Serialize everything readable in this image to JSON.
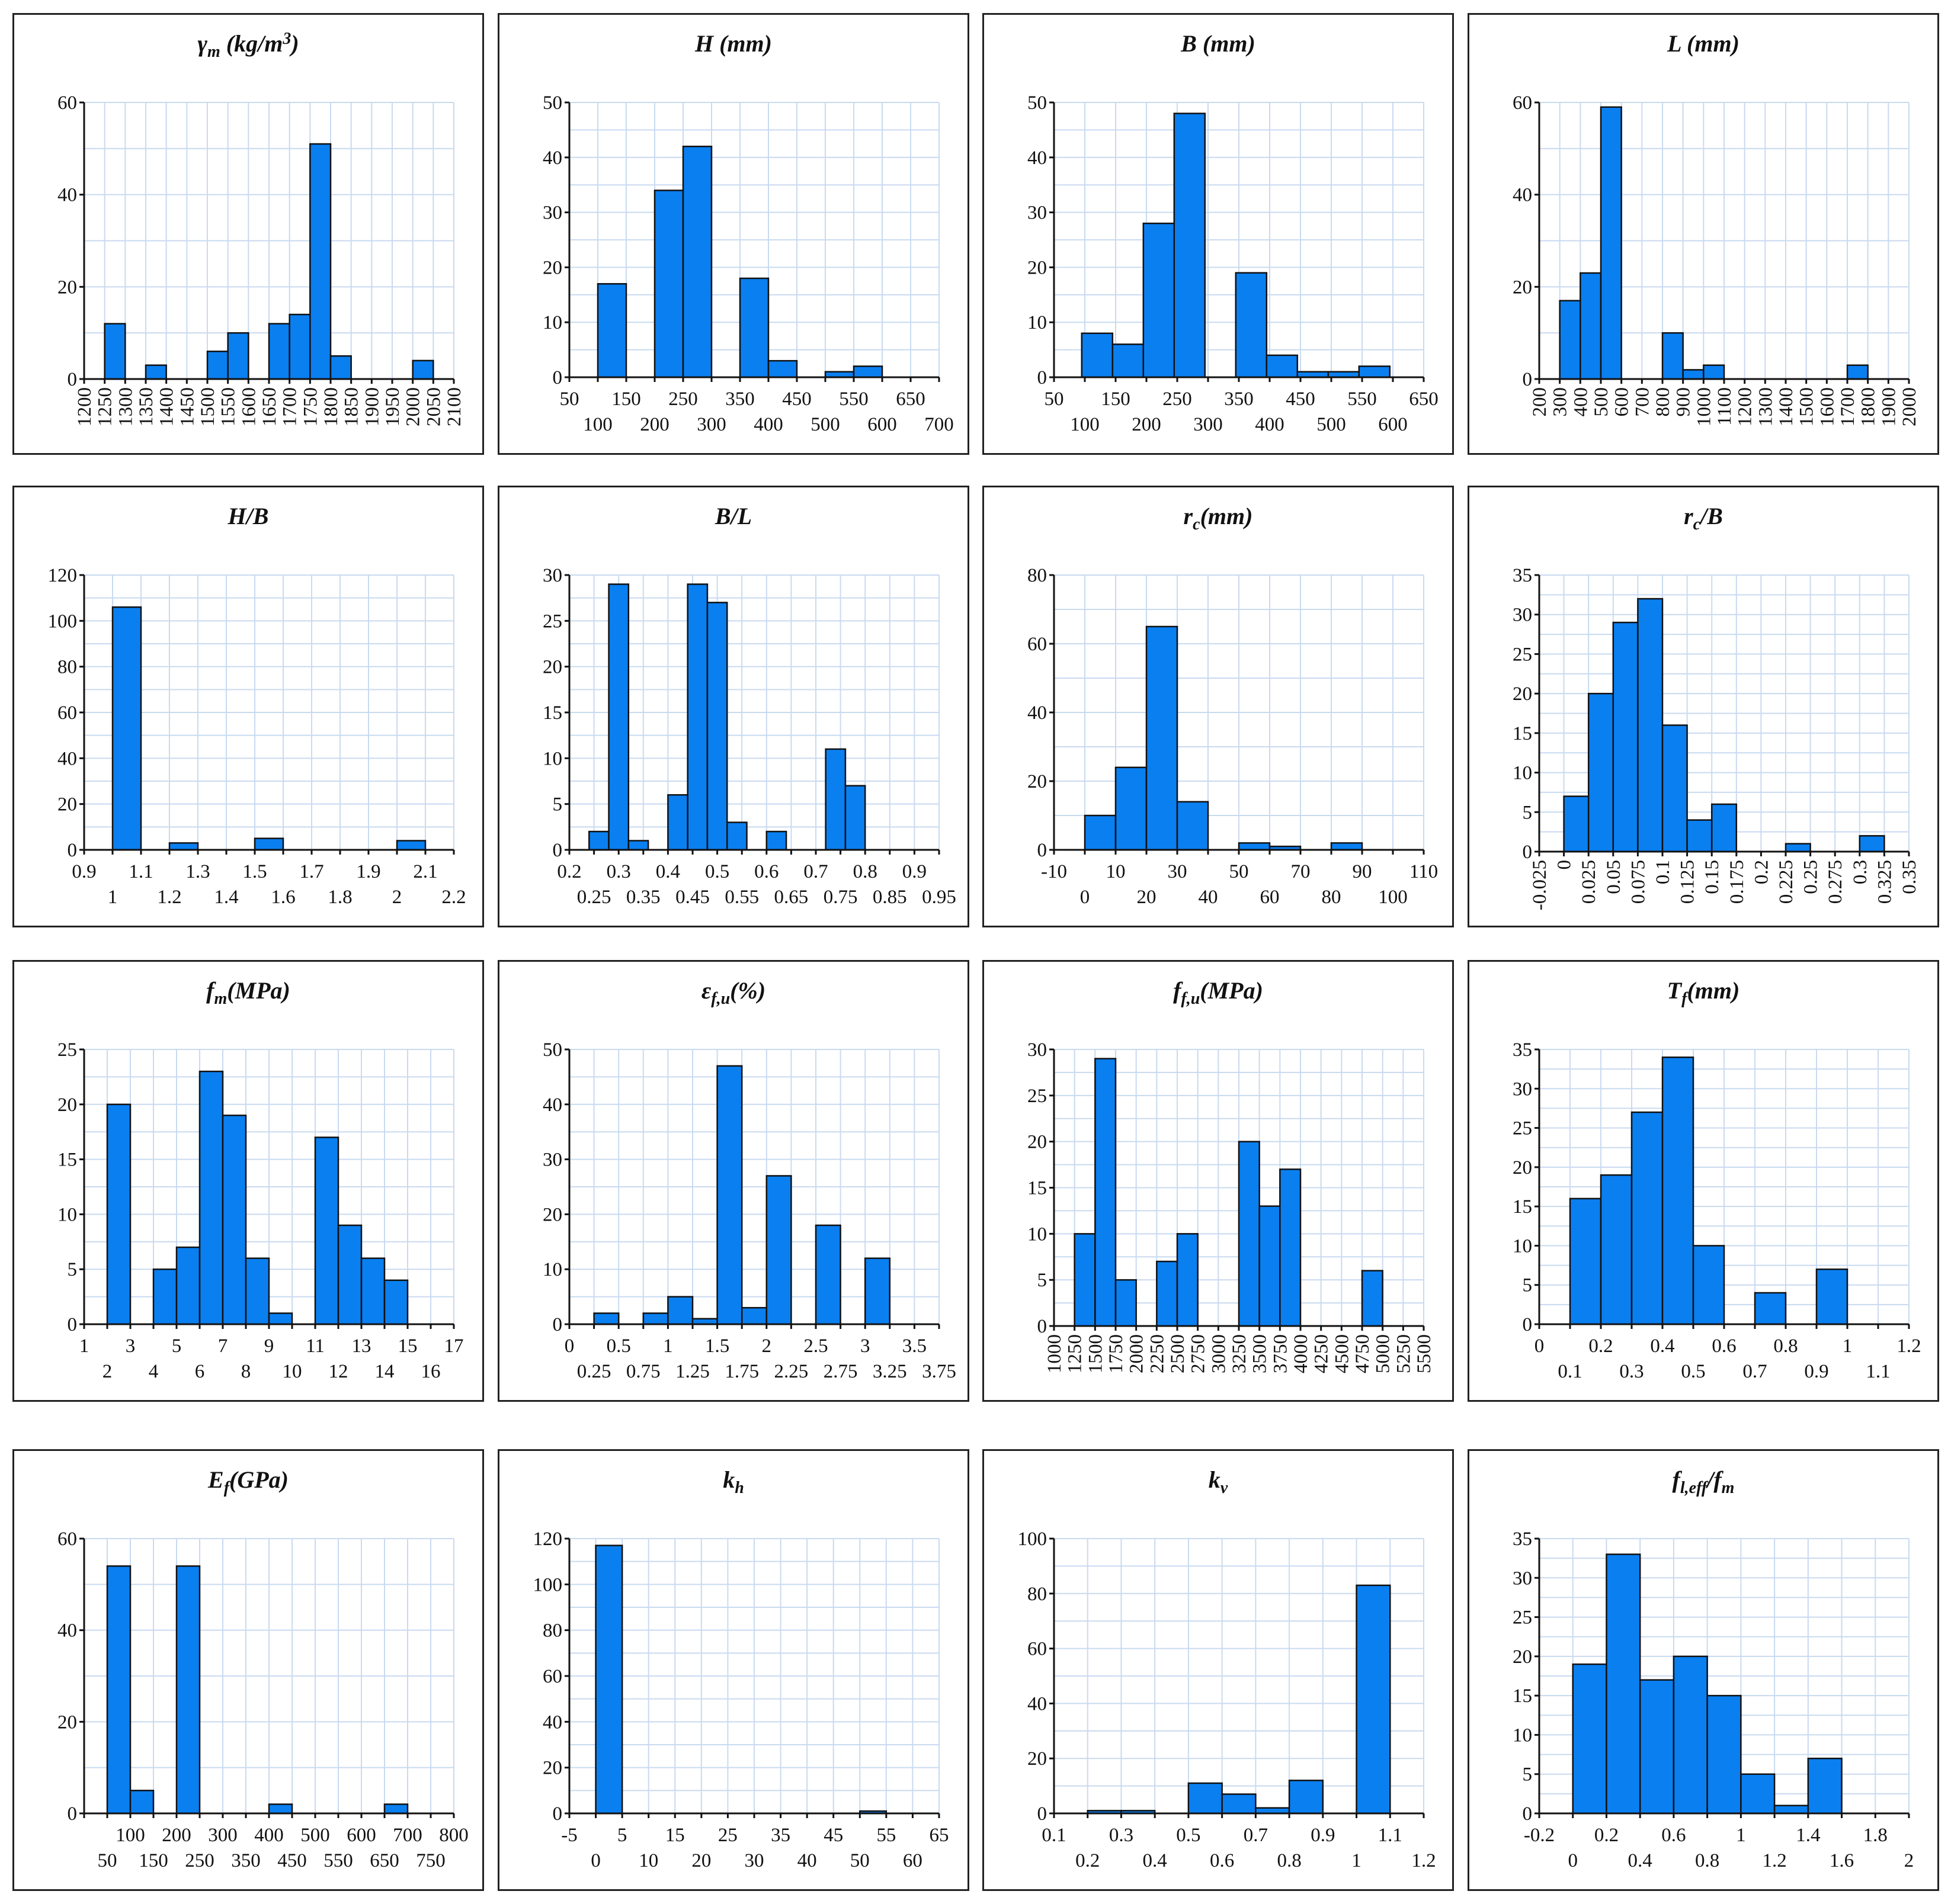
{
  "chart_data": [
    {
      "type": "bar",
      "title": "γm (kg/m3)",
      "xlim": [
        1200,
        2100
      ],
      "ylim": [
        0,
        60
      ],
      "xticks": [
        1200,
        1250,
        1300,
        1350,
        1400,
        1450,
        1500,
        1550,
        1600,
        1650,
        1700,
        1750,
        1800,
        1850,
        1900,
        1950,
        2000,
        2050,
        2100
      ],
      "xticks_rotated": true,
      "yticks": [
        0,
        20,
        40,
        60
      ],
      "bins": [
        [
          1250,
          1300,
          12
        ],
        [
          1350,
          1400,
          3
        ],
        [
          1500,
          1550,
          6
        ],
        [
          1550,
          1600,
          10
        ],
        [
          1650,
          1700,
          12
        ],
        [
          1700,
          1750,
          14
        ],
        [
          1750,
          1800,
          51
        ],
        [
          1800,
          1850,
          5
        ],
        [
          2000,
          2050,
          4
        ]
      ]
    },
    {
      "type": "bar",
      "title": "H (mm)",
      "xlim": [
        50,
        700
      ],
      "ylim": [
        0,
        50
      ],
      "xticks": [
        50,
        100,
        150,
        200,
        250,
        300,
        350,
        400,
        450,
        500,
        550,
        600,
        650,
        700
      ],
      "xticks_staggered": true,
      "yticks": [
        0,
        10,
        20,
        30,
        40,
        50
      ],
      "bins": [
        [
          100,
          150,
          17
        ],
        [
          200,
          250,
          34
        ],
        [
          250,
          300,
          42
        ],
        [
          350,
          400,
          18
        ],
        [
          400,
          450,
          3
        ],
        [
          500,
          550,
          1
        ],
        [
          550,
          600,
          2
        ]
      ]
    },
    {
      "type": "bar",
      "title": "B (mm)",
      "xlim": [
        50,
        650
      ],
      "ylim": [
        0,
        50
      ],
      "xticks": [
        50,
        100,
        150,
        200,
        250,
        300,
        350,
        400,
        450,
        500,
        550,
        600,
        650
      ],
      "xticks_staggered": true,
      "yticks": [
        0,
        10,
        20,
        30,
        40,
        50
      ],
      "bins": [
        [
          95,
          145,
          8
        ],
        [
          145,
          195,
          6
        ],
        [
          195,
          245,
          28
        ],
        [
          245,
          295,
          48
        ],
        [
          345,
          395,
          19
        ],
        [
          395,
          445,
          4
        ],
        [
          445,
          495,
          1
        ],
        [
          495,
          545,
          1
        ],
        [
          545,
          595,
          2
        ]
      ]
    },
    {
      "type": "bar",
      "title": "L (mm)",
      "xlim": [
        200,
        2000
      ],
      "ylim": [
        0,
        60
      ],
      "xticks": [
        200,
        300,
        400,
        500,
        600,
        700,
        800,
        900,
        1000,
        1100,
        1200,
        1300,
        1400,
        1500,
        1600,
        1700,
        1800,
        1900,
        2000
      ],
      "xticks_rotated": true,
      "yticks": [
        0,
        20,
        40,
        60
      ],
      "bins": [
        [
          300,
          400,
          17
        ],
        [
          400,
          500,
          23
        ],
        [
          500,
          600,
          59
        ],
        [
          800,
          900,
          10
        ],
        [
          900,
          1000,
          2
        ],
        [
          1000,
          1100,
          3
        ],
        [
          1700,
          1800,
          3
        ]
      ]
    },
    {
      "type": "bar",
      "title": "H/B",
      "xlim": [
        0.9,
        2.2
      ],
      "ylim": [
        0,
        120
      ],
      "xticks": [
        0.9,
        1,
        1.1,
        1.2,
        1.3,
        1.4,
        1.5,
        1.6,
        1.7,
        1.8,
        1.9,
        2,
        2.1,
        2.2
      ],
      "xticks_staggered": true,
      "yticks": [
        0,
        20,
        40,
        60,
        80,
        100,
        120
      ],
      "bins": [
        [
          1.0,
          1.1,
          106
        ],
        [
          1.2,
          1.3,
          3
        ],
        [
          1.5,
          1.6,
          5
        ],
        [
          2.0,
          2.1,
          4
        ]
      ]
    },
    {
      "type": "bar",
      "title": "B/L",
      "xlim": [
        0.2,
        0.95
      ],
      "ylim": [
        0,
        30
      ],
      "xticks": [
        0.2,
        0.25,
        0.3,
        0.35,
        0.4,
        0.45,
        0.5,
        0.55,
        0.6,
        0.65,
        0.7,
        0.75,
        0.8,
        0.85,
        0.9,
        0.95
      ],
      "xticks_staggered": true,
      "yticks": [
        0,
        5,
        10,
        15,
        20,
        25,
        30
      ],
      "bins": [
        [
          0.24,
          0.28,
          2
        ],
        [
          0.28,
          0.32,
          29
        ],
        [
          0.32,
          0.36,
          1
        ],
        [
          0.4,
          0.44,
          6
        ],
        [
          0.44,
          0.48,
          29
        ],
        [
          0.48,
          0.52,
          27
        ],
        [
          0.52,
          0.56,
          3
        ],
        [
          0.6,
          0.64,
          2
        ],
        [
          0.72,
          0.76,
          11
        ],
        [
          0.76,
          0.8,
          7
        ]
      ]
    },
    {
      "type": "bar",
      "title": "rc(mm)",
      "xlim": [
        -10,
        110
      ],
      "ylim": [
        0,
        80
      ],
      "xticks": [
        -10,
        0,
        10,
        20,
        30,
        40,
        50,
        60,
        70,
        80,
        90,
        100,
        110
      ],
      "xticks_staggered": true,
      "yticks": [
        0,
        20,
        40,
        60,
        80
      ],
      "bins": [
        [
          0,
          10,
          10
        ],
        [
          10,
          20,
          24
        ],
        [
          20,
          30,
          65
        ],
        [
          30,
          40,
          14
        ],
        [
          50,
          60,
          2
        ],
        [
          60,
          70,
          1
        ],
        [
          80,
          90,
          2
        ]
      ]
    },
    {
      "type": "bar",
      "title": "rc/B",
      "xlim": [
        -0.025,
        0.35
      ],
      "ylim": [
        0,
        35
      ],
      "xticks": [
        -0.025,
        0,
        0.025,
        0.05,
        0.075,
        0.1,
        0.125,
        0.15,
        0.175,
        0.2,
        0.225,
        0.25,
        0.275,
        0.3,
        0.325,
        0.35
      ],
      "xticks_rotated": true,
      "yticks": [
        0,
        5,
        10,
        15,
        20,
        25,
        30,
        35
      ],
      "bins": [
        [
          0,
          0.025,
          7
        ],
        [
          0.025,
          0.05,
          20
        ],
        [
          0.05,
          0.075,
          29
        ],
        [
          0.075,
          0.1,
          32
        ],
        [
          0.1,
          0.125,
          16
        ],
        [
          0.125,
          0.15,
          4
        ],
        [
          0.15,
          0.175,
          6
        ],
        [
          0.225,
          0.25,
          1
        ],
        [
          0.3,
          0.325,
          2
        ]
      ]
    },
    {
      "type": "bar",
      "title": "fm(MPa)",
      "xlim": [
        1,
        17
      ],
      "ylim": [
        0,
        25
      ],
      "xticks": [
        1,
        2,
        3,
        4,
        5,
        6,
        7,
        8,
        9,
        10,
        11,
        12,
        13,
        14,
        15,
        16,
        17
      ],
      "xticks_staggered": true,
      "yticks": [
        0,
        5,
        10,
        15,
        20,
        25
      ],
      "bins": [
        [
          2,
          3,
          20
        ],
        [
          4,
          5,
          5
        ],
        [
          5,
          6,
          7
        ],
        [
          6,
          7,
          23
        ],
        [
          7,
          8,
          19
        ],
        [
          8,
          9,
          6
        ],
        [
          9,
          10,
          1
        ],
        [
          11,
          12,
          17
        ],
        [
          12,
          13,
          9
        ],
        [
          13,
          14,
          6
        ],
        [
          14,
          15,
          4
        ]
      ]
    },
    {
      "type": "bar",
      "title": "εf,u(%)",
      "xlim": [
        0,
        3.75
      ],
      "ylim": [
        0,
        50
      ],
      "xticks": [
        0,
        0.25,
        0.5,
        0.75,
        1,
        1.25,
        1.5,
        1.75,
        2,
        2.25,
        2.5,
        2.75,
        3,
        3.25,
        3.5,
        3.75
      ],
      "xticks_staggered": true,
      "yticks": [
        0,
        10,
        20,
        30,
        40,
        50
      ],
      "bins": [
        [
          0.25,
          0.5,
          2
        ],
        [
          0.75,
          1.0,
          2
        ],
        [
          1.0,
          1.25,
          5
        ],
        [
          1.25,
          1.5,
          1
        ],
        [
          1.5,
          1.75,
          47
        ],
        [
          1.75,
          2.0,
          3
        ],
        [
          2.0,
          2.25,
          27
        ],
        [
          2.5,
          2.75,
          18
        ],
        [
          3.0,
          3.25,
          12
        ]
      ]
    },
    {
      "type": "bar",
      "title": "ff,u(MPa)",
      "xlim": [
        1000,
        5500
      ],
      "ylim": [
        0,
        30
      ],
      "xticks": [
        1000,
        1250,
        1500,
        1750,
        2000,
        2250,
        2500,
        2750,
        3000,
        3250,
        3500,
        3750,
        4000,
        4250,
        4500,
        4750,
        5000,
        5250,
        5500
      ],
      "xticks_rotated": true,
      "yticks": [
        0,
        5,
        10,
        15,
        20,
        25,
        30
      ],
      "bins": [
        [
          1250,
          1500,
          10
        ],
        [
          1500,
          1750,
          29
        ],
        [
          1750,
          2000,
          5
        ],
        [
          2250,
          2500,
          7
        ],
        [
          2500,
          2750,
          10
        ],
        [
          3250,
          3500,
          20
        ],
        [
          3500,
          3750,
          13
        ],
        [
          3750,
          4000,
          17
        ],
        [
          4750,
          5000,
          6
        ]
      ]
    },
    {
      "type": "bar",
      "title": "Tf(mm)",
      "xlim": [
        0,
        1.2
      ],
      "ylim": [
        0,
        35
      ],
      "xticks": [
        0,
        0.1,
        0.2,
        0.3,
        0.4,
        0.5,
        0.6,
        0.7,
        0.8,
        0.9,
        1,
        1.1,
        1.2
      ],
      "xticks_staggered": true,
      "yticks": [
        0,
        5,
        10,
        15,
        20,
        25,
        30,
        35
      ],
      "bins": [
        [
          0.1,
          0.2,
          16
        ],
        [
          0.2,
          0.3,
          19
        ],
        [
          0.3,
          0.4,
          27
        ],
        [
          0.4,
          0.5,
          34
        ],
        [
          0.5,
          0.6,
          10
        ],
        [
          0.7,
          0.8,
          4
        ],
        [
          0.9,
          1.0,
          7
        ]
      ]
    },
    {
      "type": "bar",
      "title": "Ef(GPa)",
      "xlim": [
        0,
        800
      ],
      "ylim": [
        0,
        60
      ],
      "xticks": [
        0,
        50,
        100,
        150,
        200,
        250,
        300,
        350,
        400,
        450,
        500,
        550,
        600,
        650,
        700,
        750,
        800
      ],
      "xticks_staggered": true,
      "hidden_ticks": [
        0
      ],
      "yticks": [
        0,
        20,
        40,
        60
      ],
      "bins": [
        [
          50,
          100,
          54
        ],
        [
          100,
          150,
          5
        ],
        [
          200,
          250,
          54
        ],
        [
          400,
          450,
          2
        ],
        [
          650,
          700,
          2
        ]
      ]
    },
    {
      "type": "bar",
      "title": "kh",
      "xlim": [
        -5,
        65
      ],
      "ylim": [
        0,
        120
      ],
      "xticks": [
        -5,
        0,
        5,
        10,
        15,
        20,
        25,
        30,
        35,
        40,
        45,
        50,
        55,
        60,
        65
      ],
      "xticks_staggered": true,
      "yticks": [
        0,
        20,
        40,
        60,
        80,
        100,
        120
      ],
      "bins": [
        [
          0,
          5,
          117
        ],
        [
          50,
          55,
          1
        ]
      ]
    },
    {
      "type": "bar",
      "title": "kv",
      "xlim": [
        0.1,
        1.2
      ],
      "ylim": [
        0,
        100
      ],
      "xticks": [
        0.1,
        0.2,
        0.3,
        0.4,
        0.5,
        0.6,
        0.7,
        0.8,
        0.9,
        1,
        1.1,
        1.2
      ],
      "xticks_staggered": true,
      "yticks": [
        0,
        20,
        40,
        60,
        80,
        100
      ],
      "bins": [
        [
          0.2,
          0.3,
          1
        ],
        [
          0.3,
          0.4,
          1
        ],
        [
          0.5,
          0.6,
          11
        ],
        [
          0.6,
          0.7,
          7
        ],
        [
          0.7,
          0.8,
          2
        ],
        [
          0.8,
          0.9,
          12
        ],
        [
          1.0,
          1.1,
          83
        ]
      ]
    },
    {
      "type": "bar",
      "title": "fl,eff/fm",
      "xlim": [
        -0.2,
        2
      ],
      "ylim": [
        0,
        35
      ],
      "xticks": [
        -0.2,
        0,
        0.2,
        0.4,
        0.6,
        0.8,
        1,
        1.2,
        1.4,
        1.6,
        1.8,
        2
      ],
      "xticks_staggered": true,
      "yticks": [
        0,
        5,
        10,
        15,
        20,
        25,
        30,
        35
      ],
      "bins": [
        [
          0,
          0.2,
          19
        ],
        [
          0.2,
          0.4,
          33
        ],
        [
          0.4,
          0.6,
          17
        ],
        [
          0.6,
          0.8,
          20
        ],
        [
          0.8,
          1.0,
          15
        ],
        [
          1.0,
          1.2,
          5
        ],
        [
          1.2,
          1.4,
          1
        ],
        [
          1.4,
          1.6,
          7
        ]
      ]
    }
  ]
}
